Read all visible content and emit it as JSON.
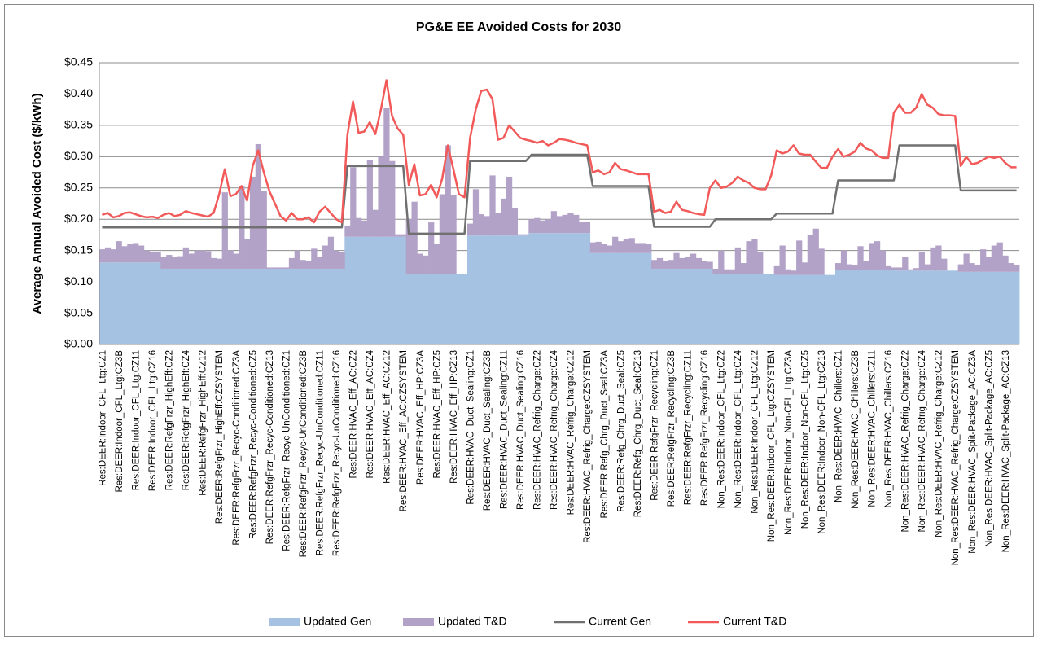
{
  "chart_data": {
    "type": "area",
    "title": "PG&E EE Avoided Costs for 2030",
    "y_label": "Average Annual Avoided Cost ($/kWh)",
    "ylim": [
      0,
      0.45
    ],
    "yticks": [
      {
        "value": 0,
        "label": "$0.00"
      },
      {
        "value": 0.05,
        "label": "$0.05"
      },
      {
        "value": 0.1,
        "label": "$0.10"
      },
      {
        "value": 0.15,
        "label": "$0.15"
      },
      {
        "value": 0.2,
        "label": "$0.20"
      },
      {
        "value": 0.25,
        "label": "$0.25"
      },
      {
        "value": 0.3,
        "label": "$0.30"
      },
      {
        "value": 0.35,
        "label": "$0.35"
      },
      {
        "value": 0.4,
        "label": "$0.40"
      },
      {
        "value": 0.45,
        "label": "$0.45"
      }
    ],
    "grid": true,
    "legend": "bottom",
    "categories": [
      "Res:DEER:Indoor_CFL_Ltg:CZ1",
      null,
      null,
      "Res:DEER:Indoor_CFL_Ltg:CZ3B",
      null,
      null,
      "Res:DEER:Indoor_CFL_Ltg:CZ11",
      null,
      null,
      "Res:DEER:Indoor_CFL_Ltg:CZ16",
      null,
      null,
      "Res:DEER:RefgFrzr_HighEff:CZ2",
      null,
      null,
      "Res:DEER:RefgFrzr_HighEff:CZ4",
      null,
      null,
      "Res:DEER:RefgFrzr_HighEff:CZ12",
      null,
      null,
      "Res:DEER:RefgFrzr_HighEff:CZSYSTEM",
      null,
      null,
      "Res:DEER:RefgFrzr_Recyc-Conditioned:CZ3A",
      null,
      null,
      "Res:DEER:RefgFrzr_Recyc-Conditioned:CZ5",
      null,
      null,
      "Res:DEER:RefgFrzr_Recyc-Conditioned:CZ13",
      null,
      null,
      "Res:DEER:RefgFrzr_Recyc-UnConditioned:CZ1",
      null,
      null,
      "Res:DEER:RefgFrzr_Recyc-UnConditioned:CZ3B",
      null,
      null,
      "Res:DEER:RefgFrzr_Recyc-UnConditioned:CZ11",
      null,
      null,
      "Res:DEER:RefgFrzr_Recyc-UnConditioned:CZ16",
      null,
      null,
      "Res:DEER:HVAC_Eff_AC:CZ2",
      null,
      null,
      "Res:DEER:HVAC_Eff_AC:CZ4",
      null,
      null,
      "Res:DEER:HVAC_Eff_AC:CZ12",
      null,
      null,
      "Res:DEER:HVAC_Eff_AC:CZSYSTEM",
      null,
      null,
      "Res:DEER:HVAC_Eff_HP:CZ3A",
      null,
      null,
      "Res:DEER:HVAC_Eff_HP:CZ5",
      null,
      null,
      "Res:DEER:HVAC_Eff_HP:CZ13",
      null,
      null,
      "Res:DEER:HVAC_Duct_Sealing:CZ1",
      null,
      null,
      "Res:DEER:HVAC_Duct_Sealing:CZ3B",
      null,
      null,
      "Res:DEER:HVAC_Duct_Sealing:CZ11",
      null,
      null,
      "Res:DEER:HVAC_Duct_Sealing:CZ16",
      null,
      null,
      "Res:DEER:HVAC_Refrig_Charge:CZ2",
      null,
      null,
      "Res:DEER:HVAC_Refrig_Charge:CZ4",
      null,
      null,
      "Res:DEER:HVAC_Refrig_Charge:CZ12",
      null,
      null,
      "Res:DEER:HVAC_Refrig_Charge:CZSYSTEM",
      null,
      null,
      "Res:DEER:Refg_Chrg_Duct_Seal:CZ3A",
      null,
      null,
      "Res:DEER:Refg_Chrg_Duct_Seal:CZ5",
      null,
      null,
      "Res:DEER:Refg_Chrg_Duct_Seal:CZ13",
      null,
      null,
      "Res:DEER:RefgFrzr_Recycling:CZ1",
      null,
      null,
      "Res:DEER:RefgFrzr_Recycling:CZ3B",
      null,
      null,
      "Res:DEER:RefgFrzr_Recycling:CZ11",
      null,
      null,
      "Res:DEER:RefgFrzr_Recycling:CZ16",
      null,
      null,
      "Non_Res:DEER:Indoor_CFL_Ltg:CZ2",
      null,
      null,
      "Non_Res:DEER:Indoor_CFL_Ltg:CZ4",
      null,
      null,
      "Non_Res:DEER:Indoor_CFL_Ltg:CZ12",
      null,
      null,
      "Non_Res:DEER:Indoor_CFL_Ltg:CZSYSTEM",
      null,
      null,
      "Non_Res:DEER:Indoor_Non-CFL_Ltg:CZ3A",
      null,
      null,
      "Non_Res:DEER:Indoor_Non-CFL_Ltg:CZ5",
      null,
      null,
      "Non_Res:DEER:Indoor_Non-CFL_Ltg:CZ13",
      null,
      null,
      "Non_Res:DEER:HVAC_Chillers:CZ1",
      null,
      null,
      "Non_Res:DEER:HVAC_Chillers:CZ3B",
      null,
      null,
      "Non_Res:DEER:HVAC_Chillers:CZ11",
      null,
      null,
      "Non_Res:DEER:HVAC_Chillers:CZ16",
      null,
      null,
      "Non_Res:DEER:HVAC_Refrig_Charge:CZ2",
      null,
      null,
      "Non_Res:DEER:HVAC_Refrig_Charge:CZ4",
      null,
      null,
      "Non_Res:DEER:HVAC_Refrig_Charge:CZ12",
      null,
      null,
      "Non_Res:DEER:HVAC_Refrig_Charge:CZSYSTEM",
      null,
      null,
      "Non_Res:DEER:HVAC_Split-Package_AC:CZ3A",
      null,
      null,
      "Non_Res:DEER:HVAC_Split-Package_AC:CZ5",
      null,
      null,
      "Non_Res:DEER:HVAC_Split-Package_AC:CZ13",
      null,
      null
    ],
    "series": [
      {
        "name": "Updated Gen",
        "type": "area",
        "color": "#a5c2e2",
        "values": [
          0.131,
          0.131,
          0.131,
          0.131,
          0.131,
          0.131,
          0.131,
          0.131,
          0.131,
          0.131,
          0.131,
          0.121,
          0.121,
          0.121,
          0.121,
          0.121,
          0.121,
          0.121,
          0.121,
          0.121,
          0.121,
          0.121,
          0.121,
          0.121,
          0.121,
          0.121,
          0.121,
          0.121,
          0.121,
          0.121,
          0.121,
          0.121,
          0.121,
          0.121,
          0.121,
          0.121,
          0.121,
          0.121,
          0.121,
          0.121,
          0.121,
          0.121,
          0.121,
          0.121,
          0.172,
          0.172,
          0.172,
          0.172,
          0.172,
          0.172,
          0.172,
          0.172,
          0.172,
          0.172,
          0.172,
          0.112,
          0.112,
          0.112,
          0.112,
          0.112,
          0.112,
          0.112,
          0.112,
          0.112,
          0.112,
          0.112,
          0.174,
          0.174,
          0.174,
          0.174,
          0.174,
          0.174,
          0.174,
          0.174,
          0.174,
          0.174,
          0.174,
          0.178,
          0.178,
          0.178,
          0.178,
          0.178,
          0.178,
          0.178,
          0.178,
          0.178,
          0.178,
          0.178,
          0.146,
          0.146,
          0.146,
          0.146,
          0.146,
          0.146,
          0.146,
          0.146,
          0.146,
          0.146,
          0.146,
          0.121,
          0.121,
          0.121,
          0.121,
          0.121,
          0.121,
          0.121,
          0.121,
          0.121,
          0.121,
          0.121,
          0.112,
          0.112,
          0.112,
          0.112,
          0.112,
          0.112,
          0.112,
          0.112,
          0.112,
          0.112,
          0.112,
          0.111,
          0.111,
          0.111,
          0.111,
          0.111,
          0.111,
          0.111,
          0.111,
          0.111,
          0.111,
          0.111,
          0.119,
          0.119,
          0.119,
          0.119,
          0.119,
          0.119,
          0.119,
          0.119,
          0.119,
          0.119,
          0.119,
          0.118,
          0.118,
          0.118,
          0.118,
          0.118,
          0.118,
          0.118,
          0.118,
          0.118,
          0.118,
          0.118,
          0.116,
          0.116,
          0.116,
          0.116,
          0.116,
          0.116,
          0.116,
          0.116,
          0.116,
          0.116,
          0.116
        ]
      },
      {
        "name": "Updated T&D",
        "type": "area",
        "stack": true,
        "color": "#b3a2c8",
        "values": [
          0.021,
          0.024,
          0.021,
          0.034,
          0.026,
          0.029,
          0.031,
          0.027,
          0.019,
          0.017,
          0.017,
          0.019,
          0.022,
          0.019,
          0.02,
          0.034,
          0.024,
          0.029,
          0.029,
          0.028,
          0.017,
          0.016,
          0.122,
          0.029,
          0.024,
          0.132,
          0.047,
          0.147,
          0.199,
          0.124,
          0.002,
          0.002,
          0.002,
          0.002,
          0.017,
          0.029,
          0.014,
          0.013,
          0.032,
          0.019,
          0.037,
          0.051,
          0.029,
          0.026,
          0.018,
          0.111,
          0.03,
          0.026,
          0.123,
          0.043,
          0.128,
          0.206,
          0.121,
          0.004,
          0.004,
          0.088,
          0.116,
          0.033,
          0.03,
          0.083,
          0.048,
          0.128,
          0.206,
          0.126,
          0.001,
          0.001,
          0.019,
          0.074,
          0.034,
          0.031,
          0.096,
          0.036,
          0.059,
          0.094,
          0.044,
          0.002,
          0.002,
          0.022,
          0.024,
          0.02,
          0.022,
          0.035,
          0.027,
          0.029,
          0.032,
          0.029,
          0.018,
          0.018,
          0.017,
          0.018,
          0.014,
          0.012,
          0.026,
          0.019,
          0.022,
          0.024,
          0.016,
          0.016,
          0.014,
          0.014,
          0.017,
          0.012,
          0.014,
          0.025,
          0.017,
          0.019,
          0.024,
          0.017,
          0.012,
          0.011,
          0.009,
          0.038,
          0.008,
          0.008,
          0.043,
          0.018,
          0.053,
          0.056,
          0.036,
          0.001,
          0.001,
          0.014,
          0.047,
          0.009,
          0.007,
          0.055,
          0.02,
          0.064,
          0.074,
          0.042,
          0.0,
          0.0,
          0.011,
          0.031,
          0.009,
          0.008,
          0.038,
          0.014,
          0.043,
          0.046,
          0.031,
          0.006,
          0.004,
          0.005,
          0.022,
          0.002,
          0.004,
          0.03,
          0.01,
          0.037,
          0.04,
          0.019,
          0.0,
          0.0,
          0.012,
          0.029,
          0.014,
          0.011,
          0.036,
          0.024,
          0.042,
          0.047,
          0.026,
          0.014,
          0.011
        ]
      },
      {
        "name": "Current Gen",
        "type": "line",
        "color": "#707070",
        "values": [
          0.187,
          0.187,
          0.187,
          0.187,
          0.187,
          0.187,
          0.187,
          0.187,
          0.187,
          0.187,
          0.187,
          0.187,
          0.187,
          0.187,
          0.187,
          0.187,
          0.187,
          0.187,
          0.187,
          0.187,
          0.187,
          0.187,
          0.187,
          0.187,
          0.187,
          0.187,
          0.187,
          0.187,
          0.187,
          0.187,
          0.187,
          0.187,
          0.187,
          0.187,
          0.187,
          0.187,
          0.187,
          0.187,
          0.187,
          0.187,
          0.187,
          0.187,
          0.187,
          0.187,
          0.285,
          0.285,
          0.285,
          0.285,
          0.285,
          0.285,
          0.285,
          0.285,
          0.285,
          0.285,
          0.285,
          0.177,
          0.177,
          0.177,
          0.177,
          0.177,
          0.177,
          0.177,
          0.177,
          0.177,
          0.177,
          0.177,
          0.293,
          0.293,
          0.293,
          0.293,
          0.293,
          0.293,
          0.293,
          0.293,
          0.293,
          0.293,
          0.293,
          0.303,
          0.303,
          0.303,
          0.303,
          0.303,
          0.303,
          0.303,
          0.303,
          0.303,
          0.303,
          0.303,
          0.253,
          0.253,
          0.253,
          0.253,
          0.253,
          0.253,
          0.253,
          0.253,
          0.253,
          0.253,
          0.253,
          0.188,
          0.188,
          0.188,
          0.188,
          0.188,
          0.188,
          0.188,
          0.188,
          0.188,
          0.188,
          0.188,
          0.2,
          0.2,
          0.2,
          0.2,
          0.2,
          0.2,
          0.2,
          0.2,
          0.2,
          0.2,
          0.2,
          0.209,
          0.209,
          0.209,
          0.209,
          0.209,
          0.209,
          0.209,
          0.209,
          0.209,
          0.209,
          0.209,
          0.262,
          0.262,
          0.262,
          0.262,
          0.262,
          0.262,
          0.262,
          0.262,
          0.262,
          0.262,
          0.262,
          0.318,
          0.318,
          0.318,
          0.318,
          0.318,
          0.318,
          0.318,
          0.318,
          0.318,
          0.318,
          0.318,
          0.246,
          0.246,
          0.246,
          0.246,
          0.246,
          0.246,
          0.246,
          0.246,
          0.246,
          0.246,
          0.246
        ]
      },
      {
        "name": "Current T&D",
        "type": "line",
        "color": "#f25a5a",
        "values": [
          0.207,
          0.21,
          0.203,
          0.205,
          0.21,
          0.211,
          0.208,
          0.205,
          0.203,
          0.204,
          0.202,
          0.207,
          0.21,
          0.205,
          0.207,
          0.213,
          0.21,
          0.208,
          0.206,
          0.204,
          0.21,
          0.24,
          0.28,
          0.237,
          0.24,
          0.253,
          0.23,
          0.285,
          0.31,
          0.275,
          0.245,
          0.225,
          0.205,
          0.198,
          0.21,
          0.2,
          0.2,
          0.203,
          0.195,
          0.212,
          0.22,
          0.21,
          0.2,
          0.195,
          0.335,
          0.388,
          0.338,
          0.34,
          0.355,
          0.336,
          0.375,
          0.422,
          0.365,
          0.345,
          0.335,
          0.255,
          0.288,
          0.238,
          0.24,
          0.255,
          0.235,
          0.265,
          0.318,
          0.28,
          0.24,
          0.235,
          0.33,
          0.375,
          0.405,
          0.407,
          0.392,
          0.327,
          0.33,
          0.35,
          0.34,
          0.33,
          0.327,
          0.325,
          0.322,
          0.325,
          0.318,
          0.322,
          0.328,
          0.327,
          0.325,
          0.322,
          0.32,
          0.318,
          0.275,
          0.278,
          0.272,
          0.275,
          0.29,
          0.28,
          0.278,
          0.275,
          0.272,
          0.272,
          0.272,
          0.212,
          0.215,
          0.21,
          0.212,
          0.228,
          0.215,
          0.213,
          0.21,
          0.208,
          0.207,
          0.25,
          0.262,
          0.25,
          0.252,
          0.258,
          0.268,
          0.262,
          0.258,
          0.25,
          0.248,
          0.248,
          0.27,
          0.31,
          0.305,
          0.308,
          0.318,
          0.305,
          0.303,
          0.303,
          0.292,
          0.282,
          0.282,
          0.3,
          0.312,
          0.3,
          0.303,
          0.308,
          0.322,
          0.313,
          0.31,
          0.302,
          0.298,
          0.298,
          0.37,
          0.383,
          0.37,
          0.37,
          0.378,
          0.4,
          0.383,
          0.378,
          0.368,
          0.366,
          0.366,
          0.365,
          0.285,
          0.3,
          0.288,
          0.29,
          0.295,
          0.3,
          0.298,
          0.3,
          0.29,
          0.283,
          0.283
        ]
      }
    ]
  }
}
